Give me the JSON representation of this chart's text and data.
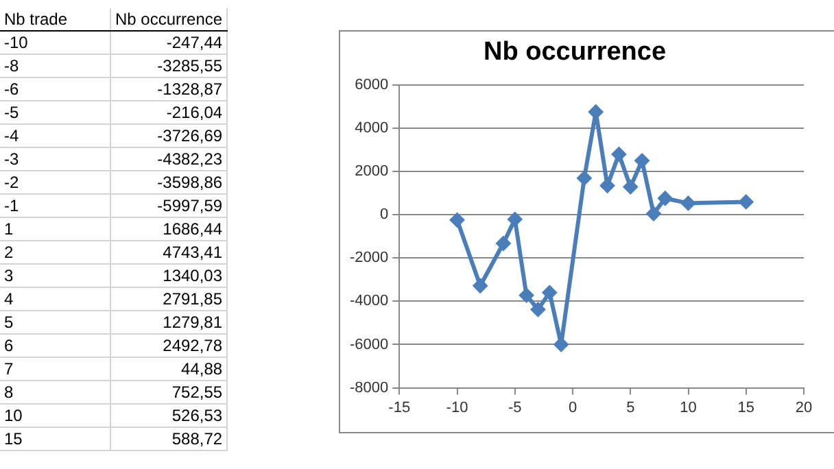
{
  "chart_data": [
    {
      "type": "other",
      "xlabel": "Nb trade",
      "ylabel": "Nb occurrence",
      "categories": [
        "-10",
        "-8",
        "-6",
        "-5",
        "-4",
        "-3",
        "-2",
        "-1",
        "1",
        "2",
        "3",
        "4",
        "5",
        "6",
        "7",
        "8",
        "10",
        "15"
      ],
      "value_labels": [
        "-247,44",
        "-3285,55",
        "-1328,87",
        "-216,04",
        "-3726,69",
        "-4382,23",
        "-3598,86",
        "-5997,59",
        "1686,44",
        "4743,41",
        "1340,03",
        "2791,85",
        "1279,81",
        "2492,78",
        "44,88",
        "752,55",
        "526,53",
        "588,72"
      ]
    },
    {
      "type": "line",
      "title": "Nb occurrence",
      "x": [
        -10,
        -8,
        -6,
        -5,
        -4,
        -3,
        -2,
        -1,
        1,
        2,
        3,
        4,
        5,
        6,
        7,
        8,
        10,
        15
      ],
      "series": [
        {
          "color": "#4a7ebb",
          "values": [
            -247,
            -3286,
            -1329,
            -216,
            -3727,
            -4382,
            -3599,
            -5998,
            1686,
            4743,
            1340,
            2792,
            1280,
            2493,
            45,
            753,
            527,
            589
          ]
        }
      ],
      "xlim": [
        -15,
        20
      ],
      "xticks": [
        -15,
        -10,
        -5,
        0,
        5,
        10,
        15,
        20
      ],
      "ylim": [
        -8000,
        6000
      ],
      "yticks": [
        -8000,
        -6000,
        -4000,
        -2000,
        0,
        2000,
        4000,
        6000
      ],
      "grid": "y",
      "marker": "diamond",
      "line_style": "solid"
    }
  ]
}
